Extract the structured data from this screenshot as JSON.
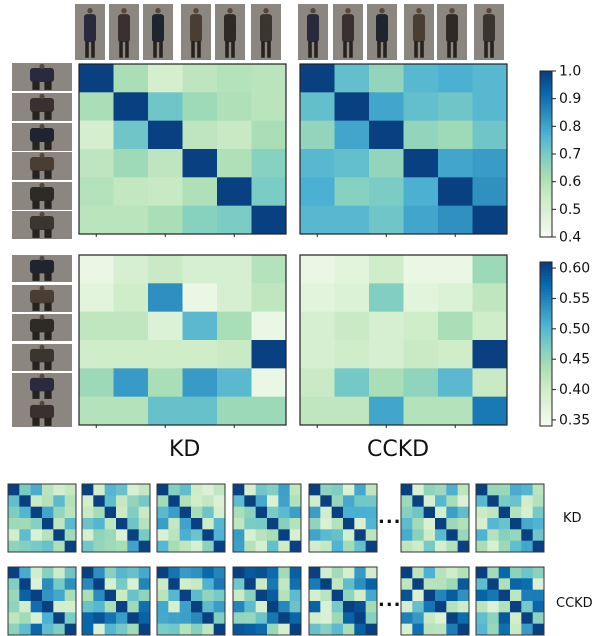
{
  "labels": {
    "col_kd": "KD",
    "col_cckd": "CCKD",
    "row_kd": "KD",
    "row_cckd": "CCKD",
    "ellipsis": "..."
  },
  "chart_data": [
    {
      "type": "heatmap",
      "group": "top-row",
      "method": "KD",
      "colorscale": "GnBu",
      "vmin": 0.4,
      "vmax": 1.0,
      "values": [
        [
          1.0,
          0.62,
          0.52,
          0.58,
          0.6,
          0.59
        ],
        [
          0.62,
          1.0,
          0.72,
          0.64,
          0.61,
          0.59
        ],
        [
          0.52,
          0.72,
          1.0,
          0.58,
          0.56,
          0.62
        ],
        [
          0.58,
          0.64,
          0.58,
          1.0,
          0.61,
          0.68
        ],
        [
          0.6,
          0.57,
          0.56,
          0.61,
          1.0,
          0.7
        ],
        [
          0.59,
          0.59,
          0.62,
          0.68,
          0.7,
          1.0
        ]
      ]
    },
    {
      "type": "heatmap",
      "group": "top-row",
      "method": "CCKD",
      "colorscale": "GnBu",
      "vmin": 0.4,
      "vmax": 1.0,
      "values": [
        [
          1.0,
          0.74,
          0.66,
          0.76,
          0.78,
          0.76
        ],
        [
          0.74,
          1.0,
          0.8,
          0.74,
          0.72,
          0.76
        ],
        [
          0.66,
          0.8,
          1.0,
          0.66,
          0.64,
          0.72
        ],
        [
          0.76,
          0.74,
          0.66,
          1.0,
          0.8,
          0.82
        ],
        [
          0.78,
          0.68,
          0.7,
          0.78,
          1.0,
          0.84
        ],
        [
          0.76,
          0.76,
          0.72,
          0.8,
          0.84,
          1.0
        ]
      ]
    },
    {
      "type": "heatmap",
      "group": "bottom-row",
      "method": "KD",
      "colorscale": "GnBu",
      "vmin": 0.34,
      "vmax": 0.61,
      "values": [
        [
          0.36,
          0.39,
          0.41,
          0.39,
          0.39,
          0.43
        ],
        [
          0.37,
          0.4,
          0.54,
          0.36,
          0.39,
          0.42
        ],
        [
          0.42,
          0.42,
          0.38,
          0.5,
          0.44,
          0.36
        ],
        [
          0.4,
          0.4,
          0.4,
          0.4,
          0.41,
          0.61
        ],
        [
          0.45,
          0.53,
          0.44,
          0.53,
          0.5,
          0.36
        ],
        [
          0.43,
          0.43,
          0.49,
          0.49,
          0.45,
          0.45
        ]
      ]
    },
    {
      "type": "heatmap",
      "group": "bottom-row",
      "method": "CCKD",
      "colorscale": "GnBu",
      "vmin": 0.34,
      "vmax": 0.61,
      "values": [
        [
          0.36,
          0.37,
          0.4,
          0.36,
          0.36,
          0.45
        ],
        [
          0.37,
          0.38,
          0.47,
          0.37,
          0.38,
          0.42
        ],
        [
          0.39,
          0.41,
          0.39,
          0.4,
          0.44,
          0.4
        ],
        [
          0.39,
          0.4,
          0.39,
          0.41,
          0.4,
          0.61
        ],
        [
          0.41,
          0.48,
          0.44,
          0.46,
          0.5,
          0.41
        ],
        [
          0.42,
          0.42,
          0.52,
          0.43,
          0.43,
          0.56
        ]
      ]
    }
  ],
  "colorbars": [
    {
      "vmin": 0.4,
      "vmax": 1.0,
      "ticks": [
        "1.0",
        "0.9",
        "0.8",
        "0.7",
        "0.6",
        "0.5",
        "0.4"
      ],
      "tick_values": [
        1.0,
        0.9,
        0.8,
        0.7,
        0.6,
        0.5,
        0.4
      ]
    },
    {
      "vmin": 0.34,
      "vmax": 0.61,
      "ticks": [
        "0.60",
        "0.55",
        "0.50",
        "0.45",
        "0.40",
        "0.35"
      ],
      "tick_values": [
        0.6,
        0.55,
        0.5,
        0.45,
        0.4,
        0.35
      ]
    }
  ],
  "thumbnail_rows": [
    "KD",
    "CCKD"
  ],
  "thumbnail_count_per_row": 7
}
